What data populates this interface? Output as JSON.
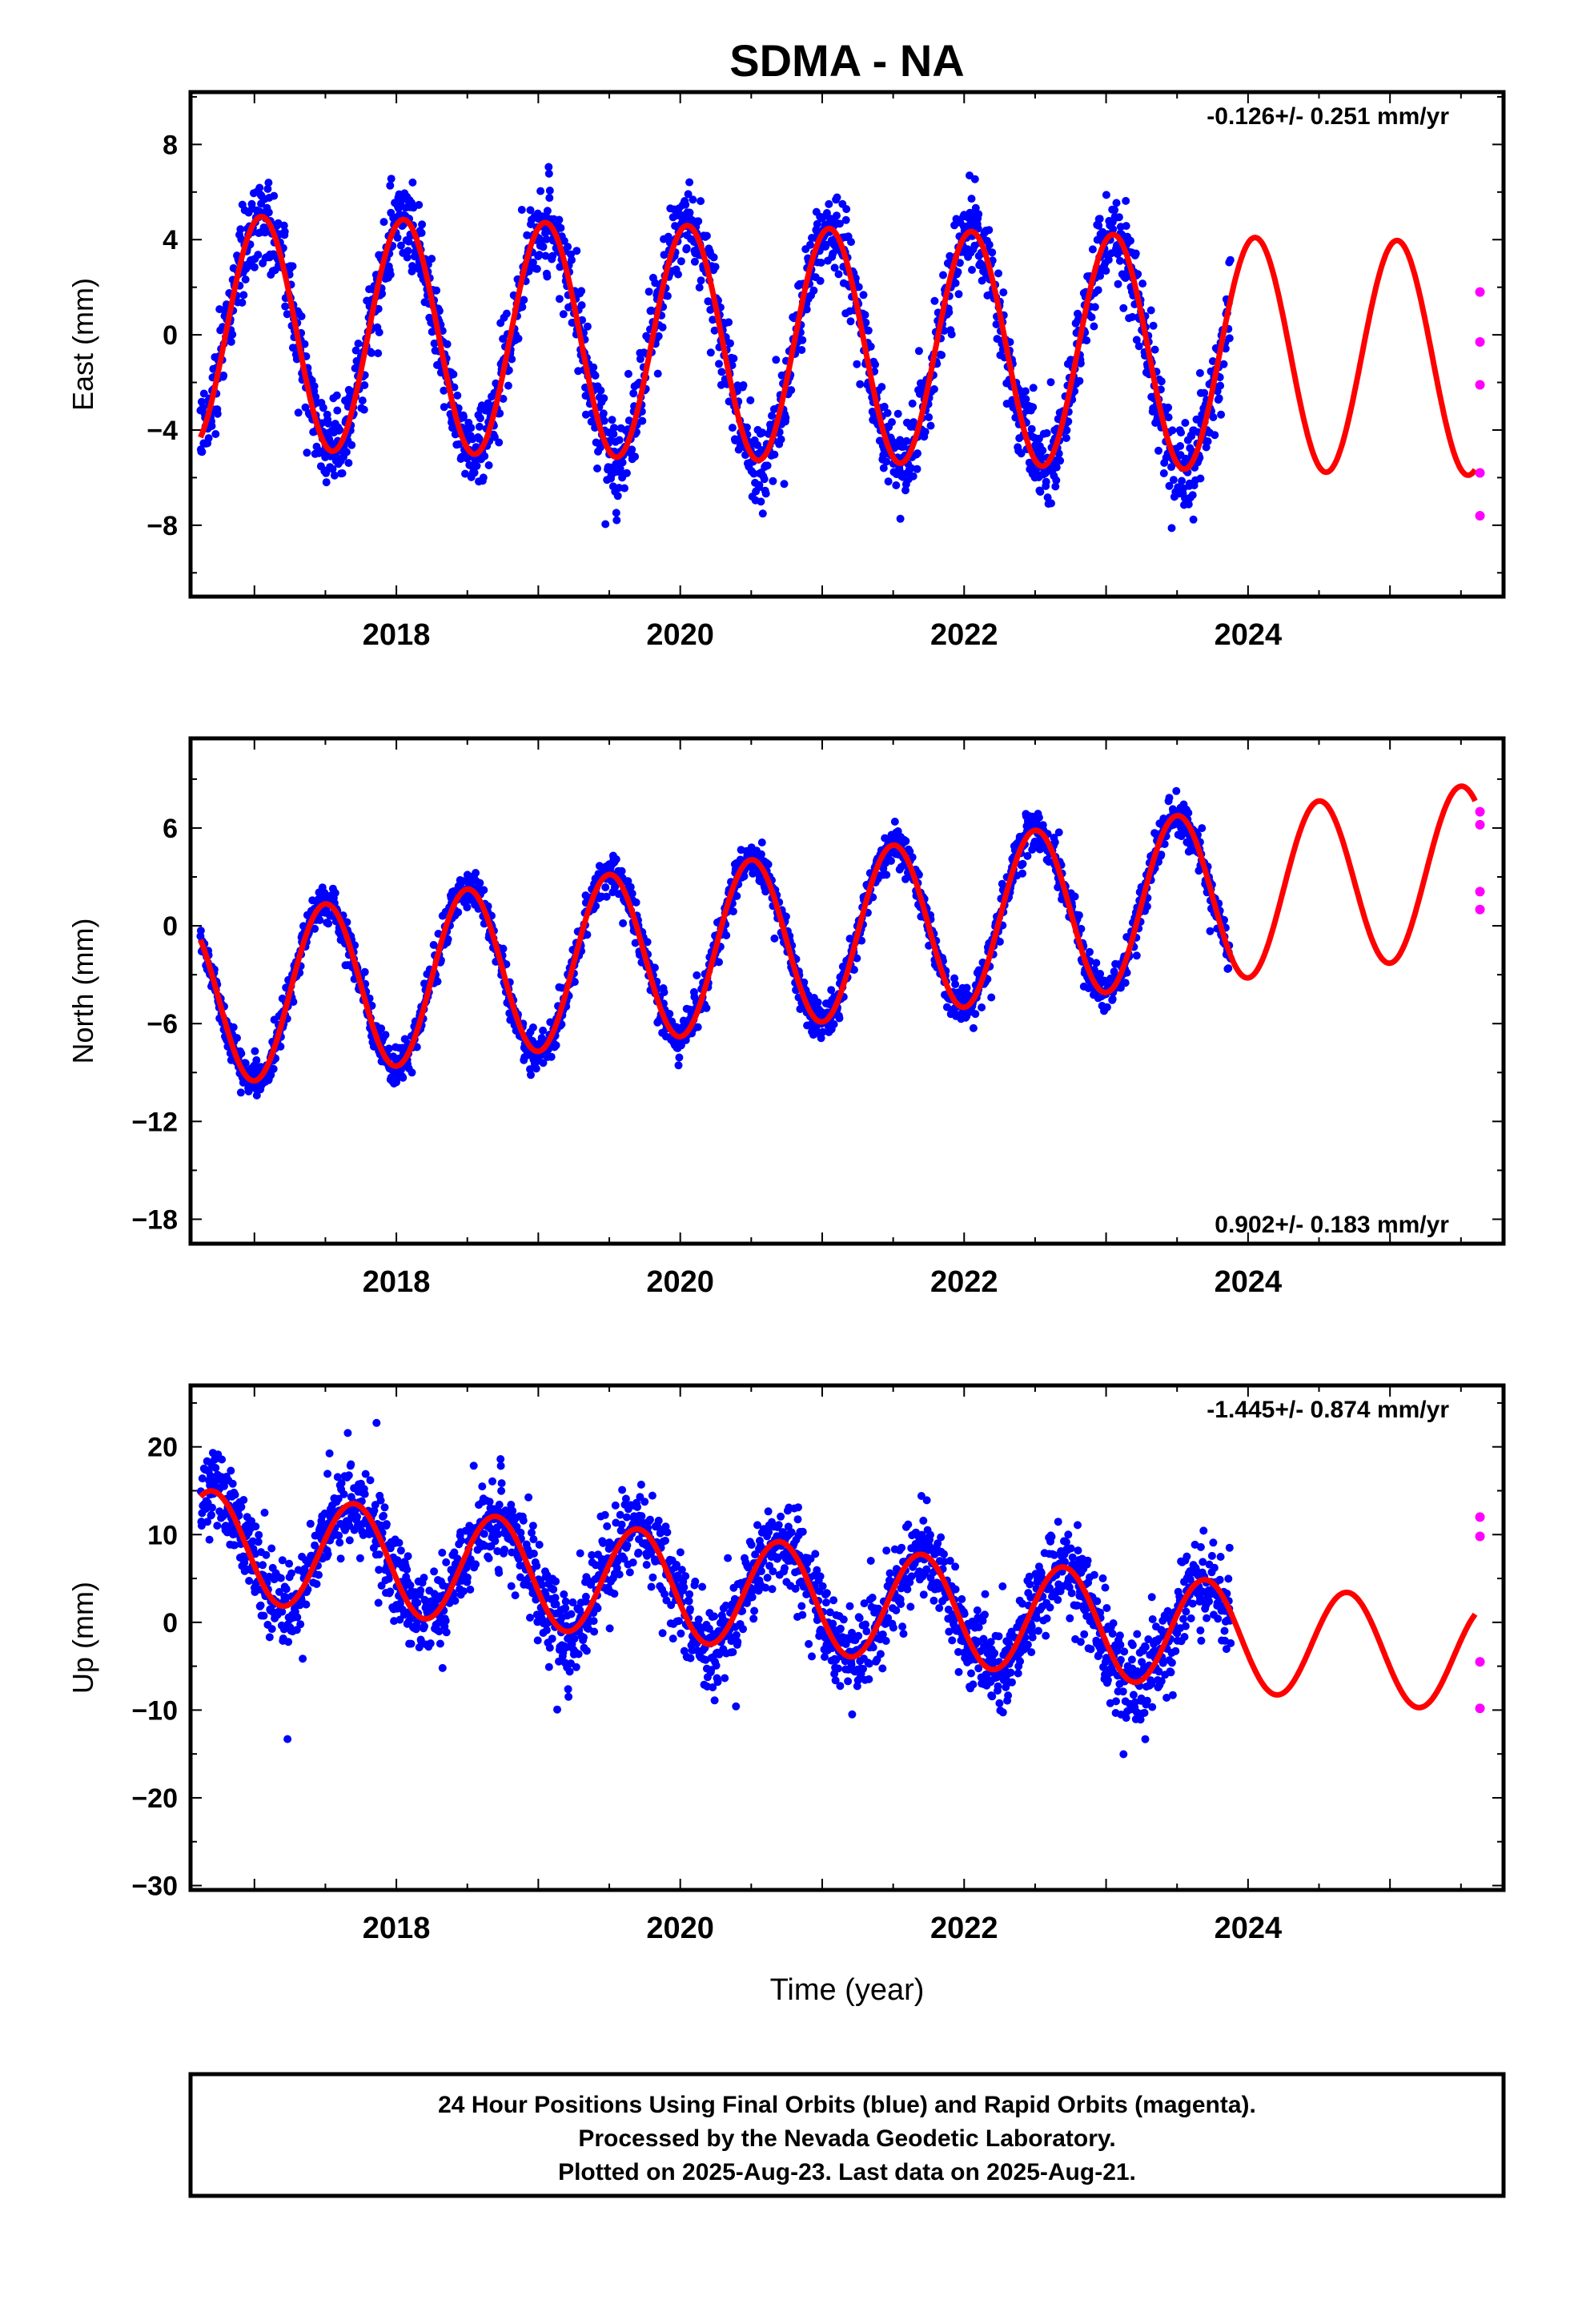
{
  "title": "SDMA - NA",
  "xlabel": "Time (year)",
  "colors": {
    "final": "#0000ff",
    "rapid": "#ff00ff",
    "model": "#ff0000",
    "frame": "#000000"
  },
  "footer": {
    "line1": "24 Hour Positions Using Final Orbits (blue) and Rapid Orbits (magenta).",
    "line2": "Processed by the Nevada Geodetic Laboratory.",
    "line3": "Plotted on 2025-Aug-23. Last data on 2025-Aug-21."
  },
  "chart_data": [
    {
      "type": "scatter",
      "ylabel": "East (mm)",
      "rate_label": "-0.126+/- 0.251 mm/yr",
      "xlim": [
        2016.55,
        2025.8
      ],
      "ylim": [
        -11,
        10.2
      ],
      "yticks": [
        8,
        4,
        0,
        -4,
        -8
      ],
      "ytick_labels": [
        "8",
        "4",
        "0",
        "−4",
        "−8"
      ],
      "xticks": [
        2018,
        2020,
        2022,
        2024
      ],
      "series": [
        {
          "role": "final",
          "x_range": [
            2016.62,
            2023.88
          ],
          "offset": -0.3,
          "trend": -0.126,
          "amp": 4.9,
          "phase_peak": 0.05,
          "noise": 1.6
        },
        {
          "role": "model",
          "x_range": [
            2016.62,
            2025.6
          ],
          "offset": -0.3,
          "trend": -0.126,
          "amp": 4.9,
          "phase_peak": 0.05
        },
        {
          "role": "rapid",
          "x": [
            2025.6,
            2025.6,
            2025.6,
            2025.6,
            2025.6
          ],
          "y": [
            1.8,
            -0.3,
            -2.1,
            -5.8,
            -7.6
          ]
        }
      ]
    },
    {
      "type": "scatter",
      "ylabel": "North (mm)",
      "rate_label": "0.902+/- 0.183 mm/yr",
      "xlim": [
        2016.55,
        2025.8
      ],
      "ylim": [
        -19.5,
        11.5
      ],
      "yticks": [
        6,
        0,
        -6,
        -12,
        -18
      ],
      "ytick_labels": [
        "6",
        "0",
        "−6",
        "−12",
        "−18"
      ],
      "xticks": [
        2018,
        2020,
        2022,
        2024
      ],
      "series": [
        {
          "role": "final",
          "x_range": [
            2016.62,
            2023.88
          ],
          "offset": -1.6,
          "trend": 0.902,
          "amp": 5.2,
          "phase_peak": 0.5,
          "noise": 1.1
        },
        {
          "role": "model",
          "x_range": [
            2016.62,
            2025.6
          ],
          "offset": -1.6,
          "trend": 0.902,
          "amp": 5.2,
          "phase_peak": 0.5
        },
        {
          "role": "rapid",
          "x": [
            2025.6,
            2025.6,
            2025.6,
            2025.6
          ],
          "y": [
            7.0,
            6.2,
            2.1,
            1.0
          ]
        }
      ]
    },
    {
      "type": "scatter",
      "ylabel": "Up (mm)",
      "rate_label": "-1.445+/- 0.874 mm/yr",
      "xlim": [
        2016.55,
        2025.8
      ],
      "ylim": [
        -30.5,
        27
      ],
      "yticks": [
        20,
        10,
        0,
        -10,
        -20,
        -30
      ],
      "ytick_labels": [
        "20",
        "10",
        "0",
        "−10",
        "−20",
        "−30"
      ],
      "xticks": [
        2018,
        2020,
        2022,
        2024
      ],
      "series": [
        {
          "role": "final",
          "x_range": [
            2016.62,
            2023.88
          ],
          "offset": 4.0,
          "trend": -1.445,
          "amp": 6.2,
          "phase_peak": 0.7,
          "noise": 4.5
        },
        {
          "role": "model",
          "x_range": [
            2016.62,
            2025.6
          ],
          "offset": 4.0,
          "trend": -1.445,
          "amp": 6.2,
          "phase_peak": 0.7
        },
        {
          "role": "rapid",
          "x": [
            2025.6,
            2025.6,
            2025.6,
            2025.6
          ],
          "y": [
            12.0,
            9.8,
            -4.5,
            -9.8
          ]
        }
      ]
    }
  ]
}
